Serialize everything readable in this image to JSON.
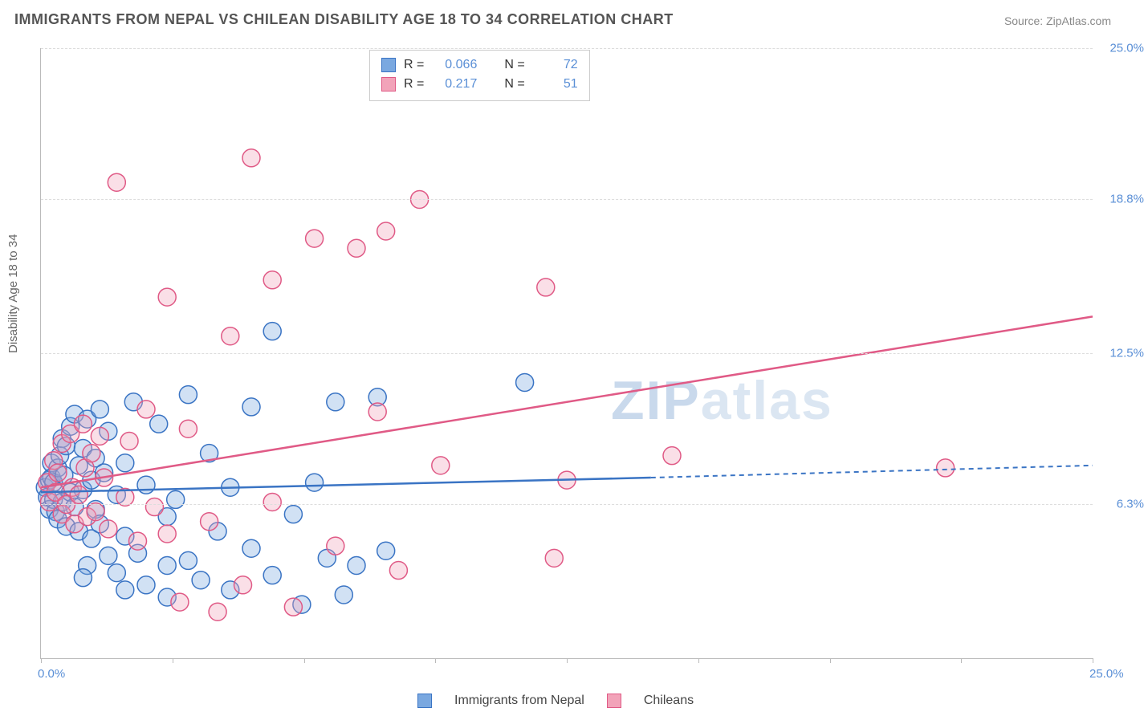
{
  "title": "IMMIGRANTS FROM NEPAL VS CHILEAN DISABILITY AGE 18 TO 34 CORRELATION CHART",
  "source": "Source: ZipAtlas.com",
  "ylabel": "Disability Age 18 to 34",
  "watermark": "ZIPatlas",
  "chart": {
    "type": "scatter",
    "xlim": [
      0,
      25
    ],
    "ylim": [
      0,
      25
    ],
    "yticks": [
      {
        "v": 6.3,
        "label": "6.3%"
      },
      {
        "v": 12.5,
        "label": "12.5%"
      },
      {
        "v": 18.8,
        "label": "18.8%"
      },
      {
        "v": 25.0,
        "label": "25.0%"
      }
    ],
    "xticks_minor": [
      0,
      3.125,
      6.25,
      9.375,
      12.5,
      15.625,
      18.75,
      21.875,
      25
    ],
    "xlabels": [
      {
        "v": 0,
        "label": "0.0%"
      },
      {
        "v": 25,
        "label": "25.0%"
      }
    ],
    "background_color": "#ffffff",
    "grid_color": "#e6e6e6",
    "point_radius": 11,
    "series": [
      {
        "id": "nepal",
        "label": "Immigrants from Nepal",
        "fill": "#7aa8e0",
        "stroke": "#3a74c4",
        "R": "0.066",
        "N": "72",
        "trend": {
          "x1": 0,
          "y1": 6.8,
          "x2": 14.5,
          "y2": 7.4,
          "dash_to_x": 25,
          "dash_to_y": 7.9
        },
        "points": [
          [
            0.1,
            7.0
          ],
          [
            0.15,
            6.6
          ],
          [
            0.2,
            7.3
          ],
          [
            0.2,
            6.1
          ],
          [
            0.25,
            7.4
          ],
          [
            0.25,
            8.0
          ],
          [
            0.3,
            6.5
          ],
          [
            0.3,
            7.2
          ],
          [
            0.35,
            6.0
          ],
          [
            0.4,
            7.8
          ],
          [
            0.4,
            5.7
          ],
          [
            0.45,
            8.3
          ],
          [
            0.5,
            6.4
          ],
          [
            0.5,
            9.0
          ],
          [
            0.55,
            7.5
          ],
          [
            0.6,
            5.4
          ],
          [
            0.6,
            8.7
          ],
          [
            0.7,
            6.8
          ],
          [
            0.7,
            9.5
          ],
          [
            0.8,
            6.2
          ],
          [
            0.8,
            10.0
          ],
          [
            0.9,
            7.9
          ],
          [
            0.9,
            5.2
          ],
          [
            1.0,
            8.6
          ],
          [
            1.0,
            6.9
          ],
          [
            1.1,
            3.8
          ],
          [
            1.1,
            9.8
          ],
          [
            1.2,
            7.3
          ],
          [
            1.2,
            4.9
          ],
          [
            1.3,
            8.2
          ],
          [
            1.3,
            6.1
          ],
          [
            1.4,
            10.2
          ],
          [
            1.4,
            5.5
          ],
          [
            1.5,
            7.6
          ],
          [
            1.6,
            4.2
          ],
          [
            1.6,
            9.3
          ],
          [
            1.8,
            6.7
          ],
          [
            1.8,
            3.5
          ],
          [
            2.0,
            8.0
          ],
          [
            2.0,
            5.0
          ],
          [
            2.2,
            10.5
          ],
          [
            2.3,
            4.3
          ],
          [
            2.5,
            7.1
          ],
          [
            2.5,
            3.0
          ],
          [
            2.8,
            9.6
          ],
          [
            3.0,
            5.8
          ],
          [
            3.0,
            2.5
          ],
          [
            3.2,
            6.5
          ],
          [
            3.5,
            4.0
          ],
          [
            3.5,
            10.8
          ],
          [
            3.8,
            3.2
          ],
          [
            4.0,
            8.4
          ],
          [
            4.2,
            5.2
          ],
          [
            4.5,
            2.8
          ],
          [
            4.5,
            7.0
          ],
          [
            5.0,
            4.5
          ],
          [
            5.0,
            10.3
          ],
          [
            5.5,
            3.4
          ],
          [
            5.5,
            13.4
          ],
          [
            6.0,
            5.9
          ],
          [
            6.2,
            2.2
          ],
          [
            6.5,
            7.2
          ],
          [
            6.8,
            4.1
          ],
          [
            7.0,
            10.5
          ],
          [
            7.2,
            2.6
          ],
          [
            7.5,
            3.8
          ],
          [
            8.0,
            10.7
          ],
          [
            8.2,
            4.4
          ],
          [
            11.5,
            11.3
          ],
          [
            1.0,
            3.3
          ],
          [
            2.0,
            2.8
          ],
          [
            3.0,
            3.8
          ]
        ]
      },
      {
        "id": "chile",
        "label": "Chileans",
        "fill": "#f2a3b9",
        "stroke": "#e05a86",
        "R": "0.217",
        "N": "51",
        "trend": {
          "x1": 0,
          "y1": 7.0,
          "x2": 25,
          "y2": 14.0
        },
        "points": [
          [
            0.15,
            7.2
          ],
          [
            0.2,
            6.4
          ],
          [
            0.3,
            8.1
          ],
          [
            0.35,
            6.8
          ],
          [
            0.4,
            7.6
          ],
          [
            0.5,
            5.9
          ],
          [
            0.5,
            8.8
          ],
          [
            0.6,
            6.3
          ],
          [
            0.7,
            9.2
          ],
          [
            0.75,
            7.0
          ],
          [
            0.8,
            5.5
          ],
          [
            0.9,
            6.7
          ],
          [
            1.0,
            9.6
          ],
          [
            1.05,
            7.8
          ],
          [
            1.1,
            5.8
          ],
          [
            1.2,
            8.4
          ],
          [
            1.3,
            6.0
          ],
          [
            1.4,
            9.1
          ],
          [
            1.5,
            7.4
          ],
          [
            1.6,
            5.3
          ],
          [
            1.8,
            19.5
          ],
          [
            2.0,
            6.6
          ],
          [
            2.1,
            8.9
          ],
          [
            2.3,
            4.8
          ],
          [
            2.5,
            10.2
          ],
          [
            2.7,
            6.2
          ],
          [
            3.0,
            14.8
          ],
          [
            3.0,
            5.1
          ],
          [
            3.3,
            2.3
          ],
          [
            3.5,
            9.4
          ],
          [
            4.0,
            5.6
          ],
          [
            4.2,
            1.9
          ],
          [
            4.5,
            13.2
          ],
          [
            4.8,
            3.0
          ],
          [
            5.0,
            20.5
          ],
          [
            5.5,
            6.4
          ],
          [
            5.5,
            15.5
          ],
          [
            6.0,
            2.1
          ],
          [
            6.5,
            17.2
          ],
          [
            7.0,
            4.6
          ],
          [
            7.5,
            16.8
          ],
          [
            8.0,
            10.1
          ],
          [
            8.2,
            17.5
          ],
          [
            8.5,
            3.6
          ],
          [
            9.0,
            18.8
          ],
          [
            9.5,
            7.9
          ],
          [
            12.0,
            15.2
          ],
          [
            12.2,
            4.1
          ],
          [
            12.5,
            7.3
          ],
          [
            15.0,
            8.3
          ],
          [
            21.5,
            7.8
          ]
        ]
      }
    ]
  },
  "legend_bottom": [
    {
      "sw_fill": "#7aa8e0",
      "sw_stroke": "#3a74c4",
      "label": "Immigrants from Nepal"
    },
    {
      "sw_fill": "#f2a3b9",
      "sw_stroke": "#e05a86",
      "label": "Chileans"
    }
  ]
}
